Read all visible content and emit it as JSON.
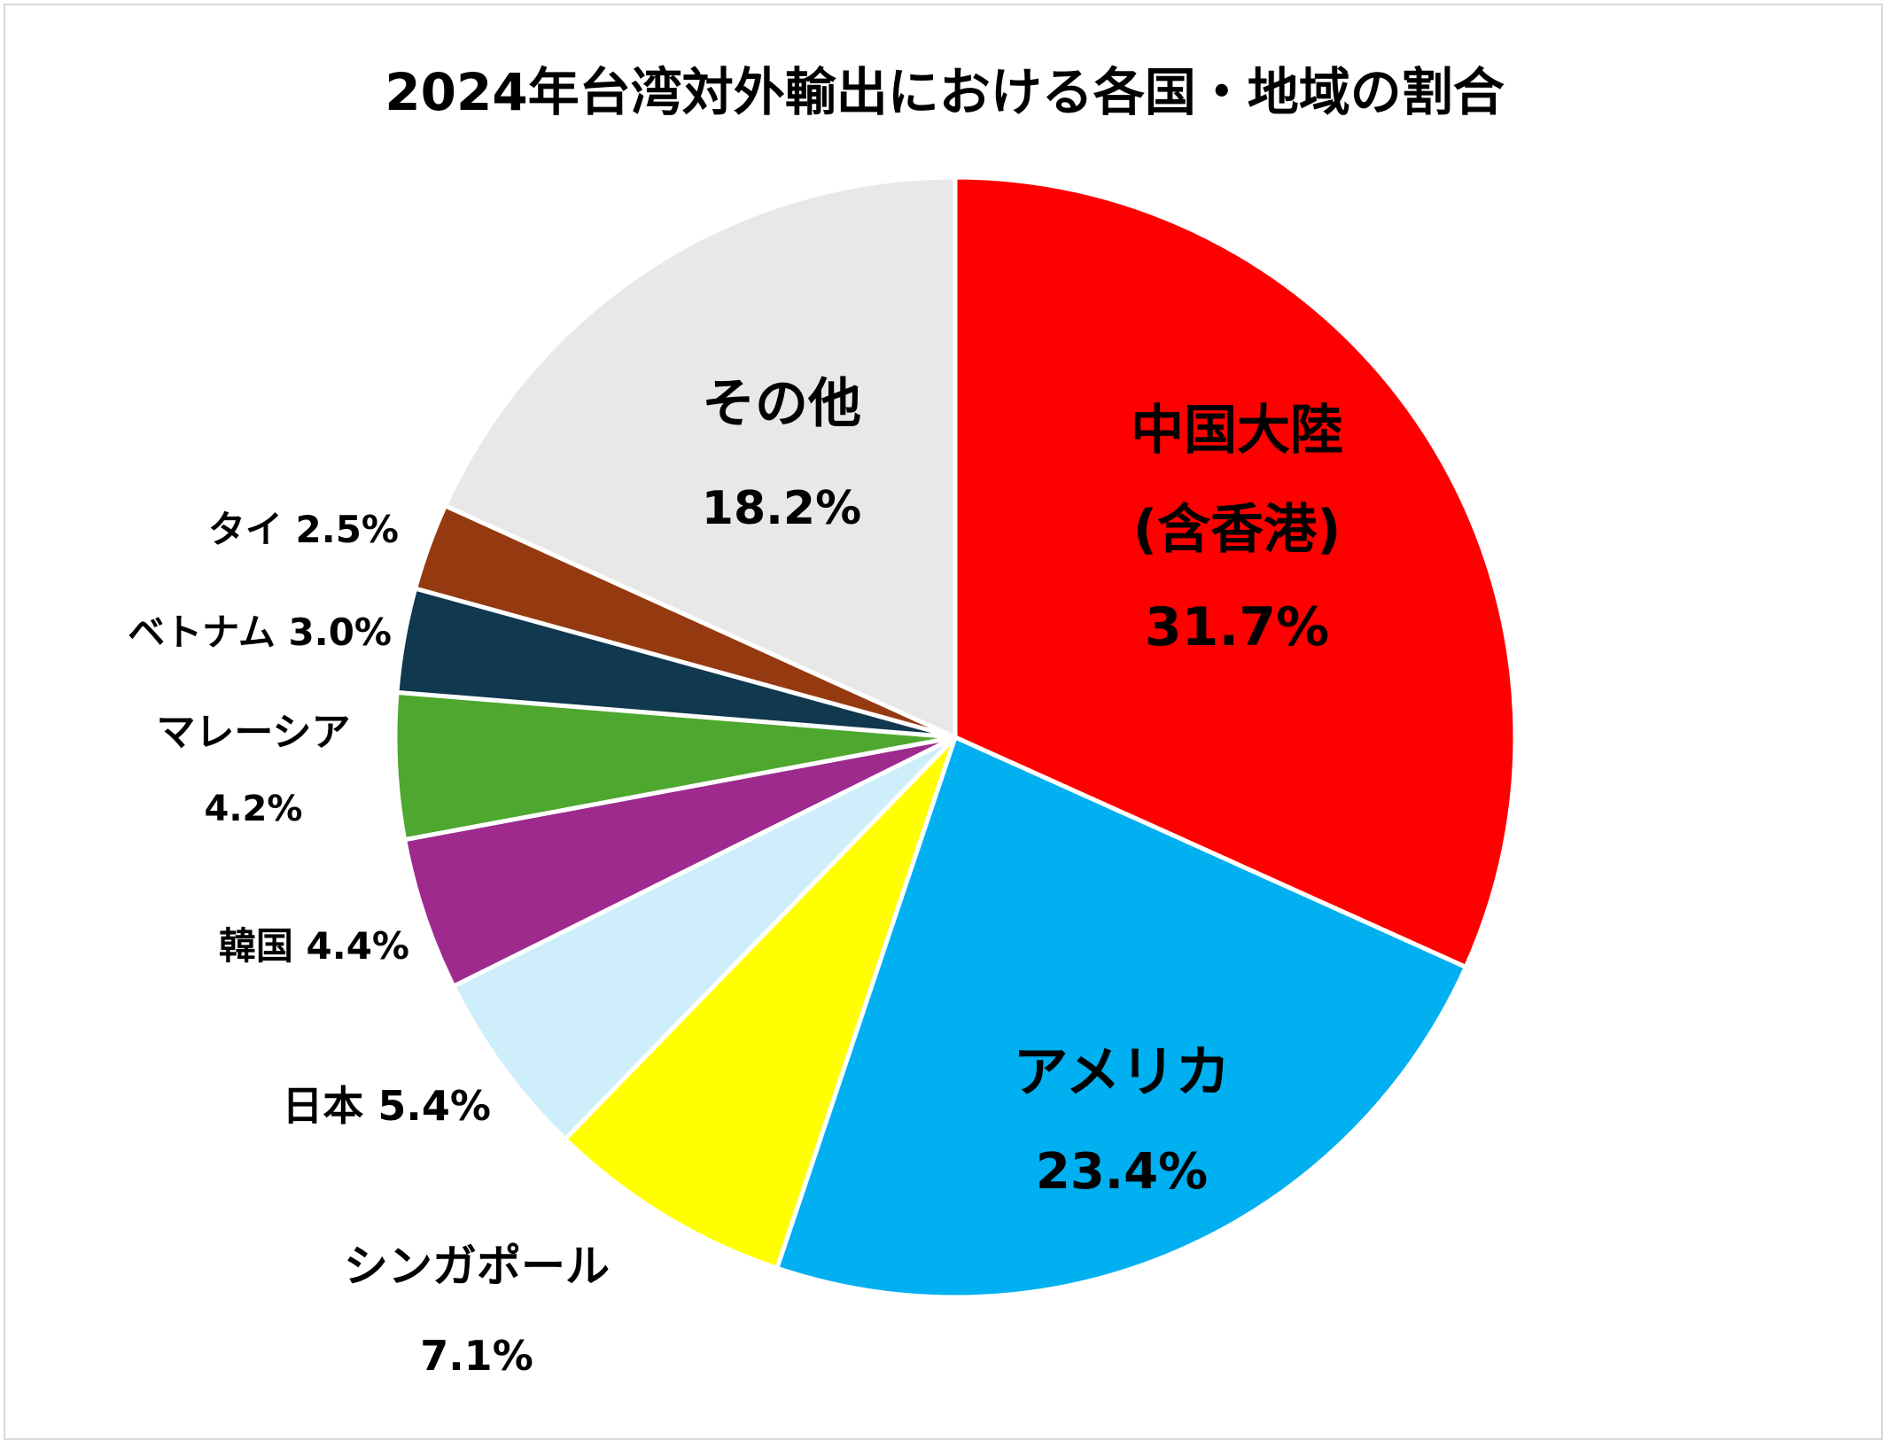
{
  "chart_data": {
    "type": "pie",
    "title": "2024年台湾対外輸出における各国・地域の割合",
    "slices": [
      {
        "label": "中国大陸(含香港)",
        "label_lines": [
          "中国大陸",
          "(含香港)"
        ],
        "value_label": "31.7%",
        "value": 31.7,
        "color": "#ff0000"
      },
      {
        "label": "アメリカ",
        "label_lines": [
          "アメリカ"
        ],
        "value_label": "23.4%",
        "value": 23.4,
        "color": "#00b0f0"
      },
      {
        "label": "シンガポール",
        "label_lines": [
          "シンガポール"
        ],
        "value_label": "7.1%",
        "value": 7.1,
        "color": "#ffff00"
      },
      {
        "label": "日本",
        "label_lines": [
          "日本"
        ],
        "value_label": "5.4%",
        "value": 5.4,
        "color": "#cdeefa"
      },
      {
        "label": "韓国",
        "label_lines": [
          "韓国"
        ],
        "value_label": "4.4%",
        "value": 4.4,
        "color": "#9e2a8e"
      },
      {
        "label": "マレーシア",
        "label_lines": [
          "マレーシア"
        ],
        "value_label": "4.2%",
        "value": 4.2,
        "color": "#4ea72e"
      },
      {
        "label": "ベトナム",
        "label_lines": [
          "ベトナム"
        ],
        "value_label": "3.0%",
        "value": 3.0,
        "color": "#10384f"
      },
      {
        "label": "タイ",
        "label_lines": [
          "タイ"
        ],
        "value_label": "2.5%",
        "value": 2.5,
        "color": "#953a10"
      },
      {
        "label": "その他",
        "label_lines": [
          "その他"
        ],
        "value_label": "18.2%",
        "value": 18.2,
        "color": "#e8e8e8"
      }
    ],
    "legend": "none",
    "start_angle": "12 o'clock",
    "direction": "clockwise"
  }
}
